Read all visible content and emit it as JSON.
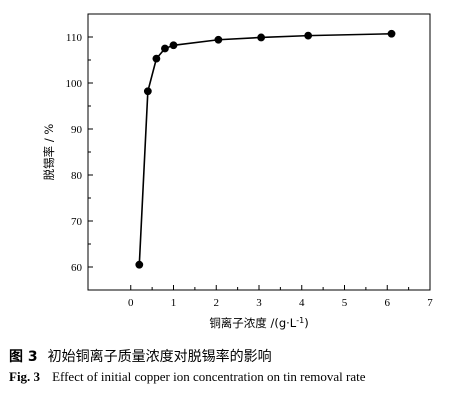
{
  "chart_data": {
    "type": "line",
    "title": "",
    "xlabel": "铜离子浓度 /(g·L",
    "xlabel_sup": "-1",
    "xlabel_close": ")",
    "ylabel": "脱锡率 / %",
    "xlim": [
      -1,
      7
    ],
    "ylim": [
      55,
      115
    ],
    "xticks": [
      "0",
      "1",
      "2",
      "3",
      "4",
      "5",
      "6",
      "7"
    ],
    "yticks": [
      "60",
      "70",
      "80",
      "90",
      "100",
      "110"
    ],
    "series": [
      {
        "color": "#000000",
        "marker": "filled-circle",
        "points": [
          {
            "x": 0.2,
            "y": 60.5
          },
          {
            "x": 0.4,
            "y": 98.2
          },
          {
            "x": 0.6,
            "y": 105.3
          },
          {
            "x": 0.8,
            "y": 107.5
          },
          {
            "x": 1.0,
            "y": 108.2
          },
          {
            "x": 2.05,
            "y": 109.4
          },
          {
            "x": 3.05,
            "y": 109.9
          },
          {
            "x": 4.15,
            "y": 110.3
          },
          {
            "x": 6.1,
            "y": 110.7
          }
        ]
      }
    ],
    "grid": false,
    "legend": "none"
  },
  "caption": {
    "cn_fig": "图 3",
    "cn_text": "初始铜离子质量浓度对脱锡率的影响",
    "en_fig": "Fig. 3",
    "en_text": "Effect of initial copper ion concentration on tin removal rate"
  }
}
